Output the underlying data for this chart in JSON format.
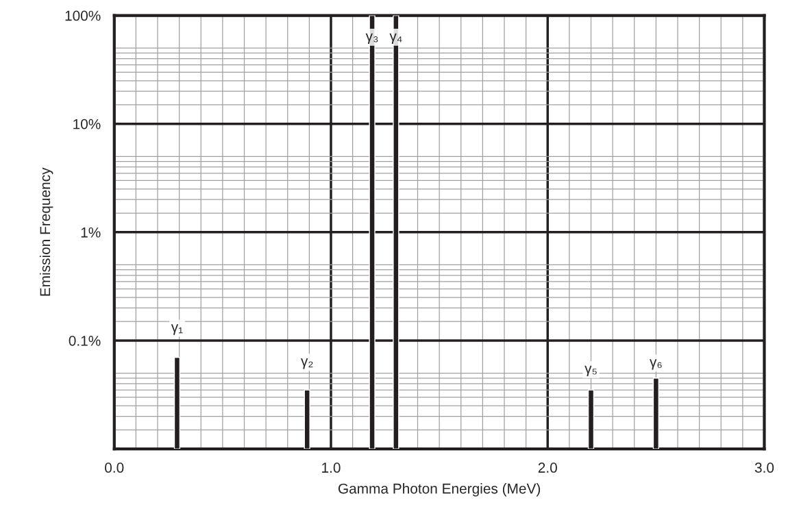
{
  "chart_data": {
    "type": "bar",
    "xlabel": "Gamma Photon Energies (MeV)",
    "ylabel": "Emission Frequency",
    "x": [
      0.29,
      0.89,
      1.19,
      1.3,
      2.2,
      2.5
    ],
    "values": [
      0.07,
      0.035,
      100,
      100,
      0.035,
      0.045
    ],
    "color": "#231f20",
    "log": true,
    "xlim": [
      0,
      3
    ],
    "xticks": [
      {
        "value": 0,
        "label": "0.0"
      },
      {
        "value": 1,
        "label": "1.0"
      },
      {
        "value": 2,
        "label": "2.0"
      },
      {
        "value": 3,
        "label": "3.0"
      }
    ],
    "ylim": [
      0.01,
      100
    ],
    "yticks": [
      {
        "value": 0.01,
        "label": null
      },
      {
        "value": 0.1,
        "label": "0.1%"
      },
      {
        "value": 1,
        "label": "1%"
      },
      {
        "value": 10,
        "label": "10%"
      },
      {
        "value": 100,
        "label": "100%"
      }
    ],
    "grid": true,
    "annotations": [
      {
        "text": "γ₁",
        "x": 0.29,
        "y": 0.13
      },
      {
        "text": "γ₂",
        "x": 0.89,
        "y": 0.063
      },
      {
        "text": "γ₃",
        "x": 1.19,
        "y": 63
      },
      {
        "text": "γ₄",
        "x": 1.3,
        "y": 63
      },
      {
        "text": "γ₅",
        "x": 2.2,
        "y": 0.054
      },
      {
        "text": "γ₆",
        "x": 2.5,
        "y": 0.062
      }
    ]
  }
}
